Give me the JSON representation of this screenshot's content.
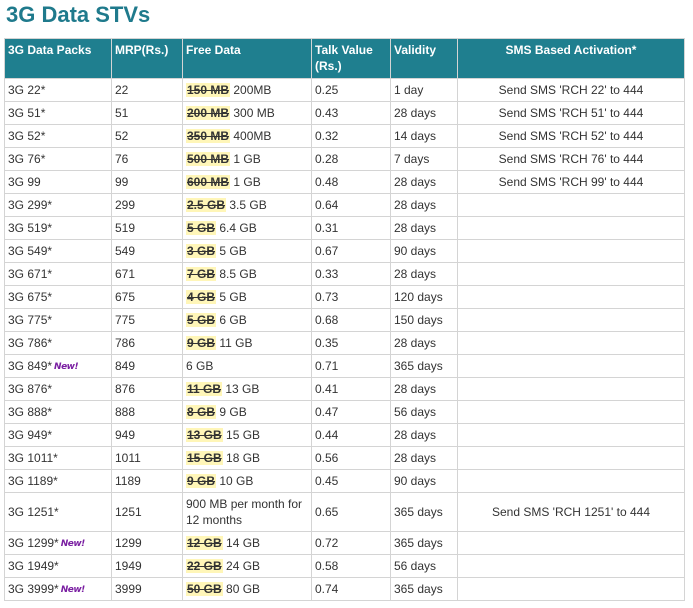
{
  "title": "3G Data STVs",
  "table": {
    "headers": {
      "pack": "3G Data Packs",
      "mrp": "MRP(Rs.)",
      "data": "Free Data",
      "talk": "Talk Value (Rs.)",
      "validity": "Validity",
      "sms": "SMS Based Activation*"
    },
    "new_badge": "New!",
    "rows": [
      {
        "pack": "3G 22*",
        "is_new": false,
        "mrp": "22",
        "old_data": "150 MB",
        "new_data": "200MB",
        "talk": "0.25",
        "validity": "1 day",
        "sms": "Send SMS 'RCH 22' to 444"
      },
      {
        "pack": "3G 51*",
        "is_new": false,
        "mrp": "51",
        "old_data": "200 MB",
        "new_data": "300 MB",
        "talk": "0.43",
        "validity": "28 days",
        "sms": "Send SMS 'RCH 51' to 444"
      },
      {
        "pack": "3G 52*",
        "is_new": false,
        "mrp": "52",
        "old_data": "350 MB",
        "new_data": "400MB",
        "talk": "0.32",
        "validity": "14 days",
        "sms": "Send SMS 'RCH 52' to 444"
      },
      {
        "pack": "3G 76*",
        "is_new": false,
        "mrp": "76",
        "old_data": "500 MB",
        "new_data": "1 GB",
        "talk": "0.28",
        "validity": "7 days",
        "sms": "Send SMS 'RCH 76' to 444"
      },
      {
        "pack": "3G 99",
        "is_new": false,
        "mrp": "99",
        "old_data": "600 MB",
        "new_data": "1 GB",
        "talk": "0.48",
        "validity": "28 days",
        "sms": "Send SMS 'RCH 99' to 444"
      },
      {
        "pack": "3G 299*",
        "is_new": false,
        "mrp": "299",
        "old_data": "2.5 GB",
        "new_data": "3.5 GB",
        "talk": "0.64",
        "validity": "28 days",
        "sms": ""
      },
      {
        "pack": "3G 519*",
        "is_new": false,
        "mrp": "519",
        "old_data": "5 GB",
        "new_data": "6.4 GB",
        "talk": "0.31",
        "validity": "28 days",
        "sms": ""
      },
      {
        "pack": "3G 549*",
        "is_new": false,
        "mrp": "549",
        "old_data": "3 GB",
        "new_data": "5 GB",
        "talk": "0.67",
        "validity": "90 days",
        "sms": ""
      },
      {
        "pack": "3G 671*",
        "is_new": false,
        "mrp": "671",
        "old_data": "7 GB",
        "new_data": "8.5 GB",
        "talk": "0.33",
        "validity": "28 days",
        "sms": ""
      },
      {
        "pack": "3G 675*",
        "is_new": false,
        "mrp": "675",
        "old_data": "4 GB",
        "new_data": "5 GB",
        "talk": "0.73",
        "validity": "120 days",
        "sms": ""
      },
      {
        "pack": "3G 775*",
        "is_new": false,
        "mrp": "775",
        "old_data": "5 GB",
        "new_data": "6 GB",
        "talk": "0.68",
        "validity": "150 days",
        "sms": ""
      },
      {
        "pack": "3G 786*",
        "is_new": false,
        "mrp": "786",
        "old_data": "9 GB",
        "new_data": "11 GB",
        "talk": "0.35",
        "validity": "28 days",
        "sms": ""
      },
      {
        "pack": "3G 849*",
        "is_new": true,
        "mrp": "849",
        "old_data": "",
        "new_data": "6 GB",
        "talk": "0.71",
        "validity": "365 days",
        "sms": ""
      },
      {
        "pack": "3G 876*",
        "is_new": false,
        "mrp": "876",
        "old_data": "11 GB",
        "new_data": "13 GB",
        "talk": "0.41",
        "validity": "28 days",
        "sms": ""
      },
      {
        "pack": "3G 888*",
        "is_new": false,
        "mrp": "888",
        "old_data": "8 GB",
        "new_data": "9 GB",
        "talk": "0.47",
        "validity": "56 days",
        "sms": ""
      },
      {
        "pack": "3G 949*",
        "is_new": false,
        "mrp": "949",
        "old_data": "13 GB",
        "new_data": "15 GB",
        "talk": "0.44",
        "validity": "28 days",
        "sms": ""
      },
      {
        "pack": "3G 1011*",
        "is_new": false,
        "mrp": "1011",
        "old_data": "15 GB",
        "new_data": "18 GB",
        "talk": "0.56",
        "validity": "28 days",
        "sms": ""
      },
      {
        "pack": "3G 1189*",
        "is_new": false,
        "mrp": "1189",
        "old_data": "9 GB",
        "new_data": "10 GB",
        "talk": "0.45",
        "validity": "90 days",
        "sms": ""
      },
      {
        "pack": "3G 1251*",
        "is_new": false,
        "mrp": "1251",
        "old_data": "",
        "new_data": "900 MB per month for 12 months",
        "talk": "0.65",
        "validity": "365 days",
        "sms": "Send SMS 'RCH 1251' to 444"
      },
      {
        "pack": "3G 1299*",
        "is_new": true,
        "mrp": "1299",
        "old_data": "12 GB",
        "new_data": "14 GB",
        "talk": "0.72",
        "validity": "365 days",
        "sms": ""
      },
      {
        "pack": "3G 1949*",
        "is_new": false,
        "mrp": "1949",
        "old_data": "22 GB",
        "new_data": "24 GB",
        "talk": "0.58",
        "validity": "56 days",
        "sms": ""
      },
      {
        "pack": "3G 3999*",
        "is_new": true,
        "mrp": "3999",
        "old_data": "50 GB",
        "new_data": "80 GB",
        "talk": "0.74",
        "validity": "365 days",
        "sms": ""
      }
    ]
  }
}
